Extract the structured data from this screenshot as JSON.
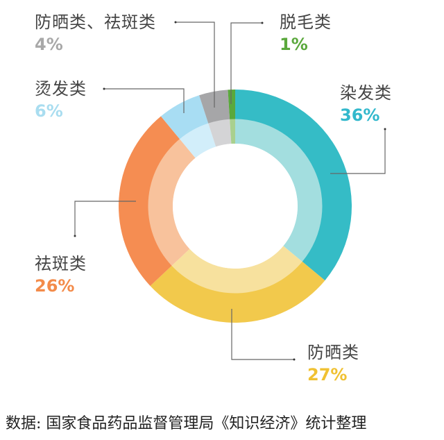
{
  "chart_data": {
    "type": "pie",
    "subtype": "donut",
    "title": "",
    "start_angle_deg": 0,
    "direction": "clockwise",
    "categories": [
      "染发类",
      "防晒类",
      "祛斑类",
      "烫发类",
      "防晒类、祛斑类",
      "脱毛类"
    ],
    "values": [
      36,
      27,
      26,
      6,
      4,
      1
    ],
    "value_labels": [
      "36%",
      "27%",
      "26%",
      "6%",
      "4%",
      "1%"
    ],
    "colors_outer": [
      "#35BCC6",
      "#F2C94C",
      "#F58D52",
      "#A8DDF3",
      "#A6A6A8",
      "#5AA83C"
    ],
    "colors_inner": [
      "#A3DEDF",
      "#F7E19E",
      "#F8C29C",
      "#D2EEFA",
      "#D4D4D6",
      "#A9D08E"
    ],
    "label_colors": [
      "#32B8CC",
      "#F0C132",
      "#F38B4A",
      "#A9DDF0",
      "#A8A8A8",
      "#5AA83C"
    ],
    "source_note": "数据: 国家食品药品监督管理局《知识经济》统计整理"
  },
  "labels": [
    {
      "name": "染发类",
      "pct": "36%"
    },
    {
      "name": "防晒类",
      "pct": "27%"
    },
    {
      "name": "祛斑类",
      "pct": "26%"
    },
    {
      "name": "烫发类",
      "pct": "6%"
    },
    {
      "name": "防晒类、祛斑类",
      "pct": "4%"
    },
    {
      "name": "脱毛类",
      "pct": "1%"
    }
  ],
  "footer": {
    "text": "数据: 国家食品药品监督管理局《知识经济》统计整理"
  }
}
